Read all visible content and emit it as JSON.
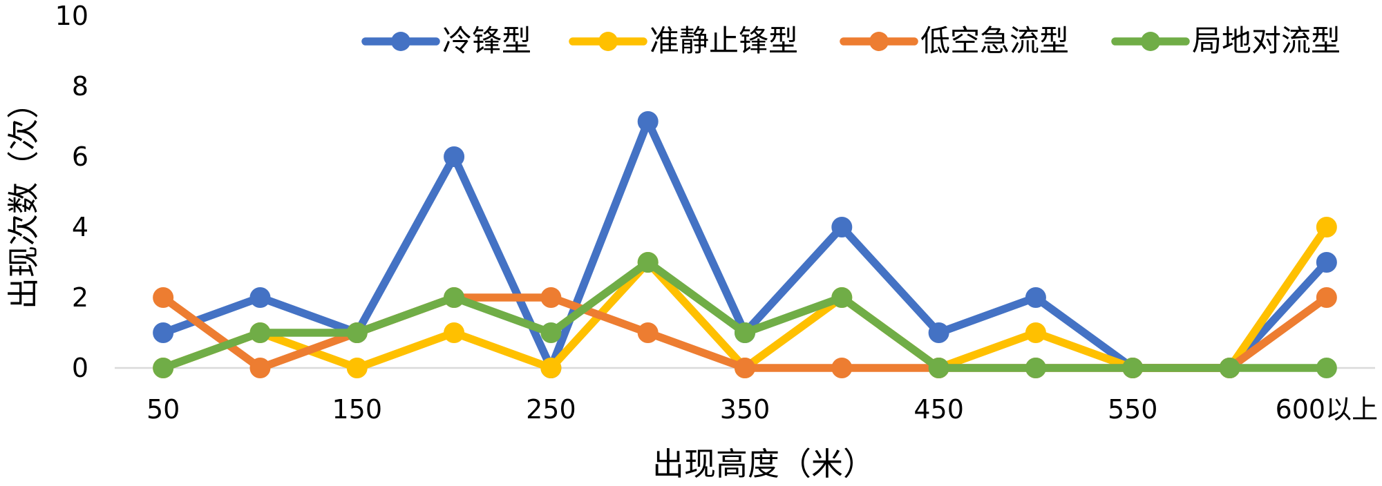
{
  "chart_data": {
    "type": "line",
    "categories": [
      "50",
      "",
      "150",
      "",
      "250",
      "",
      "350",
      "",
      "450",
      "",
      "550",
      "",
      "600以上"
    ],
    "series": [
      {
        "name": "冷锋型",
        "color": "#4472C4",
        "values": [
          1,
          2,
          1,
          6,
          0,
          7,
          1,
          4,
          1,
          2,
          0,
          0,
          3
        ]
      },
      {
        "name": "准静止锋型",
        "color": "#FFC000",
        "values": [
          0,
          1,
          0,
          1,
          0,
          3,
          0,
          2,
          0,
          1,
          0,
          0,
          4
        ]
      },
      {
        "name": "低空急流型",
        "color": "#ED7D31",
        "values": [
          2,
          0,
          1,
          2,
          2,
          1,
          0,
          0,
          0,
          0,
          0,
          0,
          2
        ]
      },
      {
        "name": "局地对流型",
        "color": "#70AD47",
        "values": [
          0,
          1,
          1,
          2,
          1,
          3,
          1,
          2,
          0,
          0,
          0,
          0,
          0
        ]
      }
    ],
    "xlabel": "出现高度（米）",
    "ylabel": "出现次数（次）",
    "ylim": [
      0,
      10
    ],
    "yticks": [
      0,
      2,
      4,
      6,
      8,
      10
    ],
    "grid": false,
    "legend": "top-right",
    "axis_color": "#D9D9D9"
  }
}
